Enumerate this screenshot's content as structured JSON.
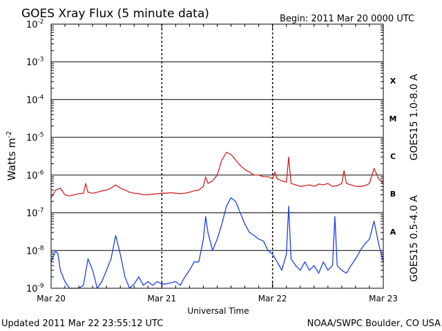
{
  "chart_data": {
    "type": "line",
    "title": "GOES Xray Flux (5 minute data)",
    "begin_label": "Begin:  2011 Mar 20 0000 UTC",
    "xlabel": "Universal Time",
    "ylabel": "Watts m",
    "ylabel_exp": "-2",
    "yscale": "log",
    "ylim": [
      1e-09,
      0.01
    ],
    "xlim": [
      0,
      72
    ],
    "x_units": "hours since 2011 Mar 20 0000 UTC",
    "y_ticks": [
      {
        "base": "10",
        "exp": "-9"
      },
      {
        "base": "10",
        "exp": "-8"
      },
      {
        "base": "10",
        "exp": "-7"
      },
      {
        "base": "10",
        "exp": "-6"
      },
      {
        "base": "10",
        "exp": "-5"
      },
      {
        "base": "10",
        "exp": "-4"
      },
      {
        "base": "10",
        "exp": "-3"
      },
      {
        "base": "10",
        "exp": "-2"
      }
    ],
    "x_ticks": [
      "Mar 20",
      "Mar 21",
      "Mar 22",
      "Mar 23"
    ],
    "class_labels": [
      "A",
      "B",
      "C",
      "M",
      "X"
    ],
    "series": [
      {
        "name": "GOES15 1.0-8.0 A",
        "color": "#d42020",
        "x": [
          0,
          1,
          2,
          3,
          4,
          5,
          6,
          7,
          7.5,
          8,
          9,
          10,
          11,
          12,
          13,
          14,
          15,
          16,
          17,
          18,
          19,
          20,
          21,
          22,
          23,
          24,
          25,
          26,
          27,
          28,
          29,
          30,
          31,
          32,
          33,
          33.5,
          34,
          35,
          36,
          37,
          38,
          39,
          40,
          41,
          42,
          43,
          44,
          45,
          46,
          47,
          48,
          48.5,
          49,
          50,
          51,
          51.5,
          52,
          53,
          54,
          55,
          56,
          57,
          58,
          59,
          60,
          61,
          62,
          63,
          63.5,
          64,
          65,
          66,
          67,
          68,
          69,
          70,
          71,
          72
        ],
        "y": [
          2.5e-07,
          4e-07,
          4.5e-07,
          3e-07,
          2.8e-07,
          3e-07,
          3.2e-07,
          3.3e-07,
          6e-07,
          3.5e-07,
          3.3e-07,
          3.5e-07,
          3.8e-07,
          4e-07,
          4.5e-07,
          5.5e-07,
          4.5e-07,
          4e-07,
          3.5e-07,
          3.3e-07,
          3.2e-07,
          3e-07,
          3e-07,
          3.1e-07,
          3.2e-07,
          3.3e-07,
          3.3e-07,
          3.4e-07,
          3.3e-07,
          3.2e-07,
          3.3e-07,
          3.5e-07,
          3.8e-07,
          4e-07,
          5e-07,
          9e-07,
          6e-07,
          7e-07,
          1e-06,
          2.5e-06,
          4e-06,
          3.5e-06,
          2.5e-06,
          1.8e-06,
          1.4e-06,
          1.2e-06,
          1e-06,
          1e-06,
          9e-07,
          9e-07,
          8e-07,
          1.2e-06,
          8e-07,
          7e-07,
          6.5e-07,
          3e-06,
          6e-07,
          5.5e-07,
          5e-07,
          5.2e-07,
          5.5e-07,
          5e-07,
          5.8e-07,
          5.5e-07,
          6e-07,
          5e-07,
          5.2e-07,
          6e-07,
          1.3e-06,
          6e-07,
          5.5e-07,
          5e-07,
          5e-07,
          5.2e-07,
          6e-07,
          1.5e-06,
          8e-07,
          6e-07
        ]
      },
      {
        "name": "GOES15 0.5-4.0 A",
        "color": "#1a3ee8",
        "x": [
          0,
          1,
          1.5,
          2,
          3,
          4,
          5,
          6,
          7,
          8,
          9,
          10,
          11,
          12,
          13,
          14,
          15,
          16,
          17,
          18,
          19,
          20,
          21,
          22,
          23,
          24,
          25,
          26,
          27,
          28,
          29,
          30,
          31,
          32,
          33,
          33.5,
          34,
          35,
          36,
          37,
          38,
          39,
          40,
          41,
          42,
          43,
          44,
          45,
          46,
          47,
          48,
          49,
          50,
          51,
          51.5,
          52,
          53,
          54,
          55,
          56,
          57,
          58,
          59,
          60,
          61,
          61.5,
          62,
          63,
          64,
          65,
          66,
          67,
          68,
          69,
          70,
          71,
          72
        ],
        "y": [
          5e-09,
          1e-08,
          8e-09,
          3e-09,
          1.5e-09,
          1e-09,
          1e-09,
          1e-09,
          1.2e-09,
          6e-09,
          3e-09,
          1e-09,
          1.5e-09,
          3e-09,
          6e-09,
          2.5e-08,
          8e-09,
          2e-09,
          1e-09,
          1.3e-09,
          2e-09,
          1.2e-09,
          1.5e-09,
          1.2e-09,
          1.5e-09,
          1.3e-09,
          1.3e-09,
          1.4e-09,
          1.5e-09,
          1.2e-09,
          2e-09,
          3e-09,
          5e-09,
          5e-09,
          2e-08,
          8e-08,
          3e-08,
          1e-08,
          2e-08,
          5e-08,
          1.5e-07,
          2.5e-07,
          2e-07,
          1e-07,
          5e-08,
          3e-08,
          2.5e-08,
          2e-08,
          1.8e-08,
          1e-08,
          8e-09,
          5e-09,
          3e-09,
          8e-09,
          1.5e-07,
          6e-09,
          4e-09,
          3e-09,
          5e-09,
          3e-09,
          4e-09,
          2.5e-09,
          5e-09,
          3e-09,
          4e-09,
          8e-08,
          4e-09,
          3e-09,
          2.5e-09,
          4e-09,
          6e-09,
          1e-08,
          1.5e-08,
          2e-08,
          6e-08,
          1.5e-08,
          5e-09
        ]
      }
    ],
    "legend": "right side, vertical labels"
  },
  "footer": {
    "updated": "Updated 2011 Mar 22 23:55:12 UTC",
    "credit": "NOAA/SWPC Boulder, CO USA"
  }
}
